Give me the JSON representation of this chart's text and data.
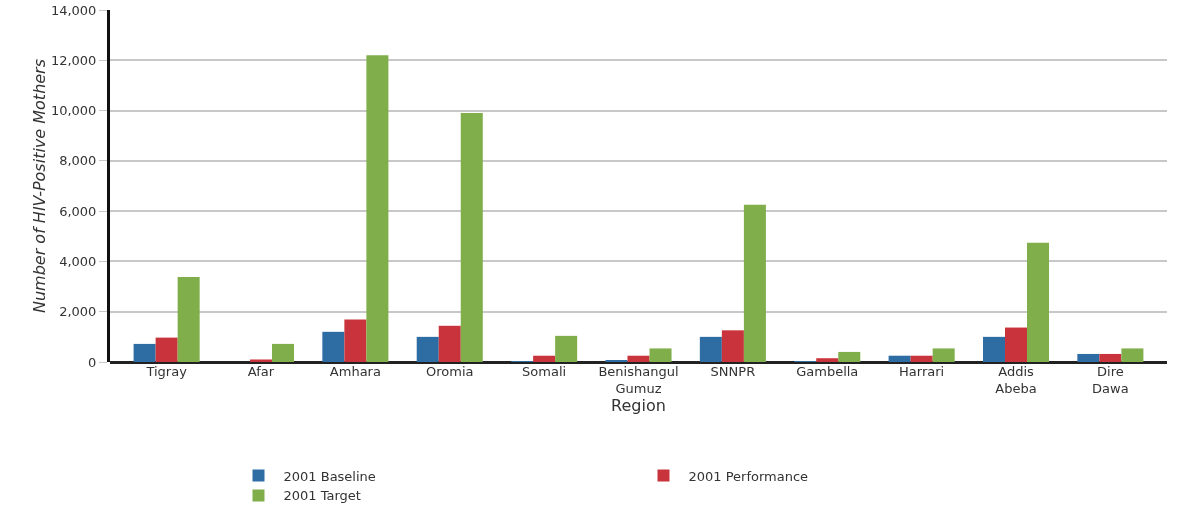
{
  "chart_data": {
    "type": "bar",
    "xlabel": "Region",
    "ylabel": "Number of HIV-Positive Mothers",
    "categories": [
      "Tigray",
      "Afar",
      "Amhara",
      "Oromia",
      "Somali",
      "Benishangul Gumuz",
      "SNNPR",
      "Gambella",
      "Harrari",
      "Addis Abeba",
      "Dire Dawa"
    ],
    "series": [
      {
        "name": "2001 Baseline",
        "color": "#2e6da4",
        "values": [
          720,
          0,
          1200,
          1000,
          30,
          60,
          1000,
          30,
          250,
          1000,
          320
        ]
      },
      {
        "name": "2001 Performance",
        "color": "#c9343c",
        "values": [
          970,
          100,
          1690,
          1440,
          250,
          250,
          1260,
          150,
          250,
          1370,
          320
        ]
      },
      {
        "name": "2001 Target",
        "color": "#7fae4a",
        "values": [
          3380,
          720,
          12200,
          9900,
          1040,
          540,
          6250,
          400,
          540,
          4740,
          540
        ]
      }
    ],
    "ylim": [
      0,
      14000
    ],
    "yticks": [
      {
        "value": 0,
        "label": "0"
      },
      {
        "value": 2000,
        "label": "2,000"
      },
      {
        "value": 4000,
        "label": "4,000"
      },
      {
        "value": 6000,
        "label": "6,000"
      },
      {
        "value": 8000,
        "label": "8,000"
      },
      {
        "value": 10000,
        "label": "10,000"
      },
      {
        "value": 12000,
        "label": "12,000"
      },
      {
        "value": 14000,
        "label": "14,000"
      }
    ],
    "grid": "y",
    "legend": "bottom"
  }
}
